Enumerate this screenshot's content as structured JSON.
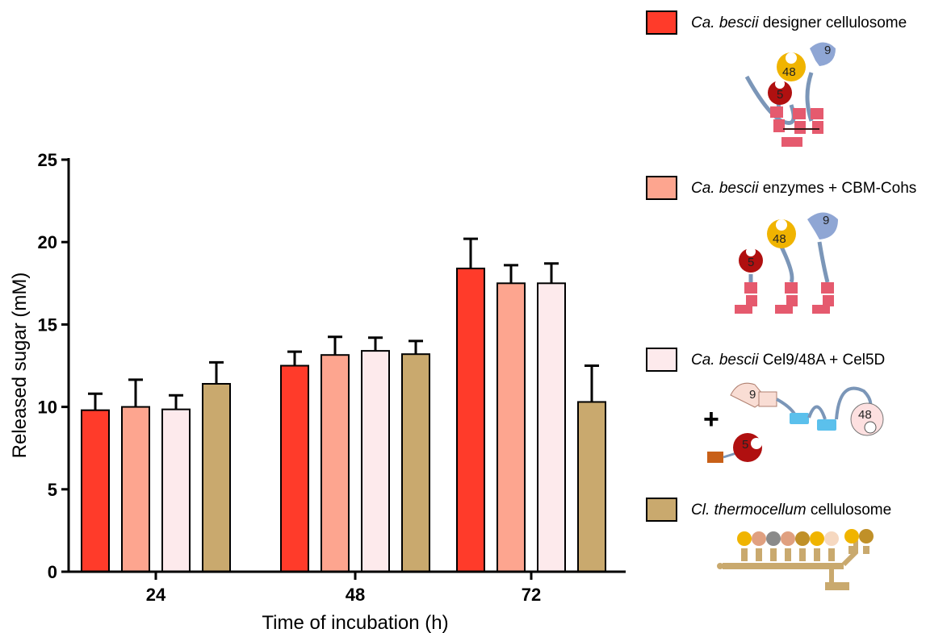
{
  "chart_data": {
    "type": "bar",
    "xlabel": "Time of incubation (h)",
    "ylabel": "Released sugar (mM)",
    "categories": [
      "24",
      "48",
      "72"
    ],
    "ylim": [
      0,
      25
    ],
    "yticks": [
      0,
      5,
      10,
      15,
      20,
      25
    ],
    "series": [
      {
        "name_italic": "Ca. bescii",
        "name_rest": " designer cellulosome",
        "color": "#ff3b2a",
        "values": [
          9.8,
          12.5,
          18.4
        ],
        "errors": [
          1.0,
          0.85,
          1.8
        ]
      },
      {
        "name_italic": "Ca. bescii",
        "name_rest": " enzymes + CBM-Cohs",
        "color": "#fda58f",
        "values": [
          10.0,
          13.15,
          17.5
        ],
        "errors": [
          1.65,
          1.1,
          1.1
        ]
      },
      {
        "name_italic": "Ca. bescii",
        "name_rest": " Cel9/48A + Cel5D",
        "color": "#fdeaec",
        "values": [
          9.85,
          13.4,
          17.5
        ],
        "errors": [
          0.85,
          0.8,
          1.2
        ]
      },
      {
        "name_italic": "Cl. thermocellum",
        "name_rest": " cellulosome",
        "color": "#c9a96e",
        "values": [
          11.4,
          13.2,
          10.3
        ],
        "errors": [
          1.3,
          0.8,
          2.2
        ]
      }
    ]
  },
  "diagram_labels": {
    "cbm": "9",
    "exo": "48",
    "endo": "5",
    "plus": "+"
  }
}
